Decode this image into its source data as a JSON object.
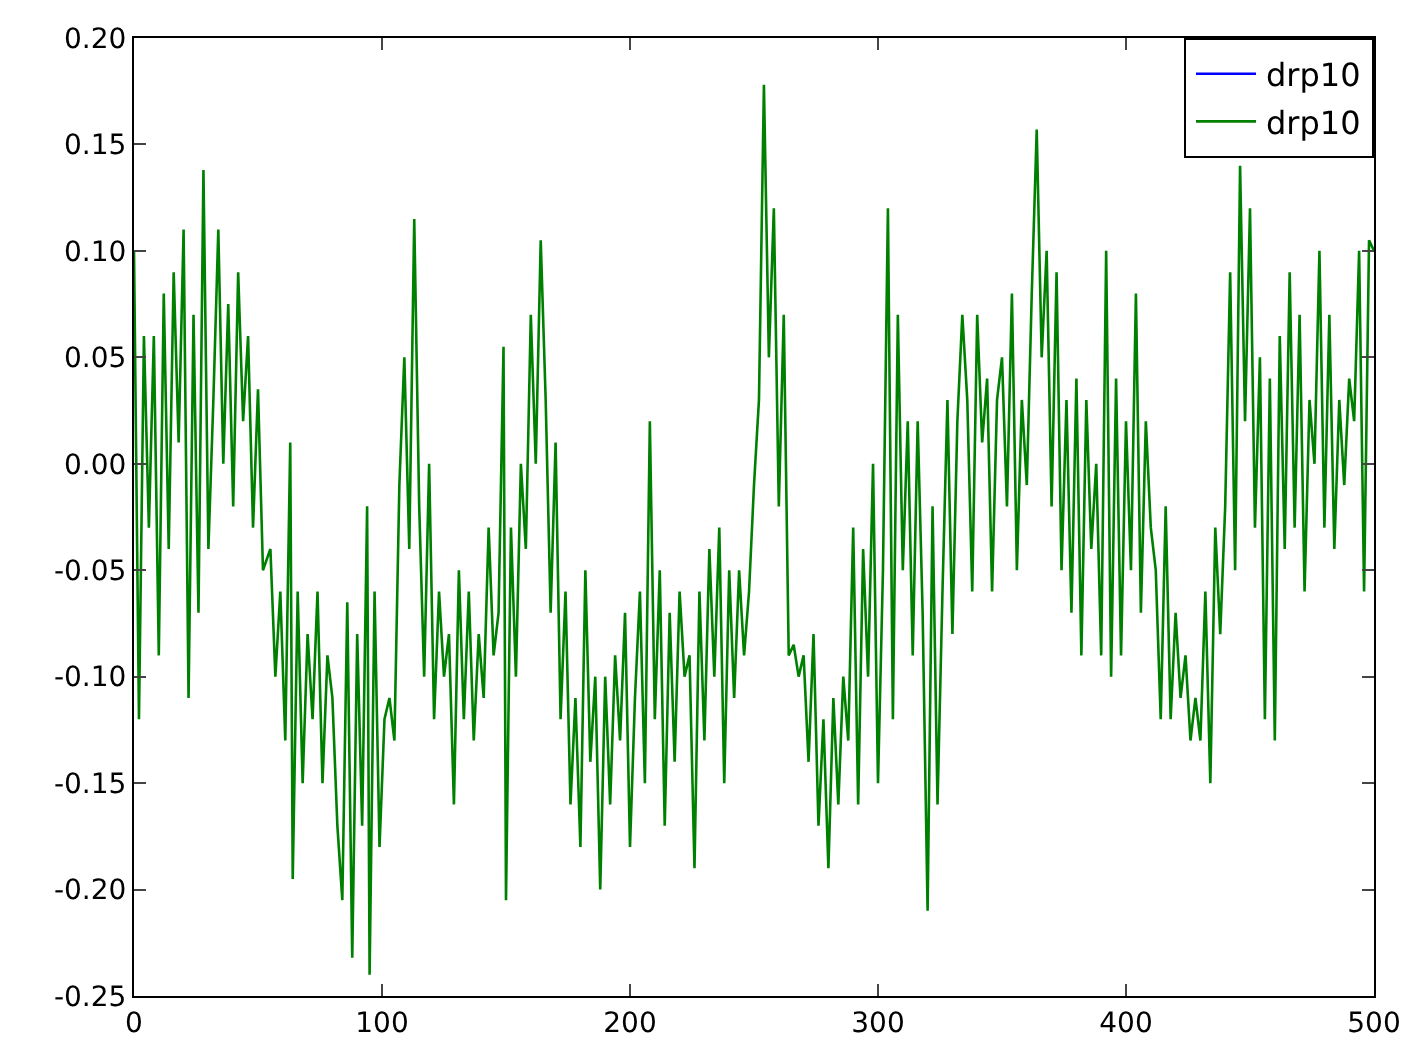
{
  "chart_data": {
    "type": "line",
    "xlim": [
      0,
      500
    ],
    "xticks": [
      0,
      100,
      200,
      300,
      400,
      500
    ],
    "ylim": [
      -0.25,
      0.2
    ],
    "yticks": [
      {
        "value": -0.25,
        "label": "-0.25"
      },
      {
        "value": -0.2,
        "label": "-0.20"
      },
      {
        "value": -0.15,
        "label": "-0.15"
      },
      {
        "value": -0.1,
        "label": "-0.10"
      },
      {
        "value": -0.05,
        "label": "-0.05"
      },
      {
        "value": 0,
        "label": "0.00"
      },
      {
        "value": 0.05,
        "label": "0.05"
      },
      {
        "value": 0.1,
        "label": "0.10"
      },
      {
        "value": 0.15,
        "label": "0.15"
      },
      {
        "value": 0.2,
        "label": "0.20"
      }
    ],
    "grid": false,
    "legend": "top right",
    "marker": "none",
    "line_style": "solid",
    "x": [
      0,
      2,
      4,
      6,
      8,
      10,
      12,
      14,
      16,
      18,
      20,
      22,
      24,
      26,
      28,
      30,
      32,
      34,
      36,
      38,
      40,
      42,
      44,
      46,
      48,
      50,
      52,
      55,
      57,
      59,
      61,
      63,
      64,
      66,
      68,
      70,
      72,
      74,
      76,
      78,
      80,
      82,
      84,
      86,
      88,
      90,
      92,
      94,
      95,
      97,
      99,
      101,
      103,
      105,
      107,
      109,
      111,
      113,
      115,
      117,
      119,
      121,
      123,
      125,
      127,
      129,
      131,
      133,
      135,
      137,
      139,
      141,
      143,
      145,
      147,
      149,
      150,
      152,
      154,
      156,
      158,
      160,
      162,
      164,
      166,
      168,
      170,
      172,
      174,
      176,
      178,
      180,
      182,
      184,
      186,
      188,
      190,
      192,
      194,
      196,
      198,
      200,
      202,
      204,
      206,
      208,
      210,
      212,
      214,
      216,
      218,
      220,
      222,
      224,
      226,
      228,
      230,
      232,
      234,
      236,
      238,
      240,
      242,
      244,
      246,
      248,
      250,
      252,
      254,
      256,
      258,
      260,
      262,
      264,
      266,
      268,
      270,
      272,
      274,
      276,
      278,
      280,
      282,
      284,
      286,
      288,
      290,
      292,
      294,
      296,
      298,
      300,
      302,
      304,
      306,
      308,
      310,
      312,
      314,
      316,
      318,
      320,
      322,
      324,
      326,
      328,
      330,
      332,
      334,
      336,
      338,
      340,
      342,
      344,
      346,
      348,
      350,
      352,
      354,
      356,
      358,
      360,
      362,
      364,
      366,
      368,
      370,
      372,
      374,
      376,
      378,
      380,
      382,
      384,
      386,
      388,
      390,
      392,
      394,
      396,
      398,
      400,
      402,
      404,
      406,
      408,
      410,
      412,
      414,
      416,
      418,
      420,
      422,
      424,
      426,
      428,
      430,
      432,
      434,
      436,
      438,
      440,
      442,
      444,
      446,
      448,
      450,
      452,
      454,
      456,
      458,
      460,
      462,
      464,
      466,
      468,
      470,
      472,
      474,
      476,
      478,
      480,
      482,
      484,
      486,
      488,
      490,
      492,
      494,
      496,
      498,
      500
    ],
    "series": [
      {
        "name": "drp10",
        "color": "#0000ff",
        "values": [
          null,
          null,
          null,
          null,
          null,
          null,
          null,
          null,
          null,
          null,
          null,
          null,
          null,
          null,
          null,
          null,
          null,
          null,
          null,
          null,
          null,
          null,
          null,
          null,
          null,
          null,
          null,
          null,
          null,
          null,
          null,
          null,
          null,
          null,
          null,
          null,
          null,
          null,
          null,
          null,
          null,
          null,
          null,
          null,
          null,
          null,
          null,
          null,
          null,
          null,
          null,
          null,
          null,
          null,
          null,
          null,
          null,
          null,
          null,
          null,
          null,
          null,
          null,
          null,
          null,
          null,
          null,
          null,
          null,
          null,
          null,
          null,
          null,
          null,
          null,
          null,
          null,
          null,
          null,
          null,
          null,
          null,
          null,
          null,
          null,
          null,
          null,
          null,
          null,
          null,
          null,
          null,
          null,
          null,
          null,
          null,
          null,
          null,
          null,
          null,
          null,
          null,
          null,
          null,
          null,
          null,
          null,
          null,
          null,
          null,
          null,
          null,
          null,
          null,
          null,
          null,
          null,
          null,
          null,
          null,
          null,
          null,
          null,
          null,
          null,
          null,
          null,
          null,
          null,
          null,
          null,
          null,
          null,
          null,
          null,
          null,
          null,
          null,
          null,
          null,
          null,
          null,
          null,
          null,
          null,
          null,
          null,
          null,
          null,
          null,
          null,
          null,
          null,
          null,
          null,
          null,
          null,
          null,
          null,
          null,
          null,
          null,
          null,
          null,
          null,
          null,
          null,
          null,
          null,
          null,
          null,
          null,
          null,
          null,
          null,
          null,
          null,
          null,
          null,
          null,
          null,
          null,
          null,
          null,
          null,
          null,
          null,
          null,
          null,
          null,
          null,
          null,
          null,
          null,
          null,
          null,
          null,
          null,
          null,
          null,
          null,
          null,
          null,
          null,
          null,
          null,
          null,
          null,
          null,
          null,
          null,
          null,
          null,
          null,
          null,
          null,
          null,
          null,
          null,
          null,
          null,
          null,
          null,
          null,
          null,
          null,
          null,
          null,
          null,
          null,
          null,
          null,
          null,
          null,
          null,
          null,
          null,
          null,
          null,
          null,
          null,
          null,
          null,
          null,
          null,
          null,
          null,
          null,
          null,
          null,
          null,
          null
        ]
      },
      {
        "name": "drp10",
        "color": "#008000",
        "values": [
          0.1,
          -0.12,
          0.06,
          -0.03,
          0.06,
          -0.09,
          0.08,
          -0.04,
          0.09,
          0.01,
          0.11,
          -0.11,
          0.07,
          -0.07,
          0.138,
          -0.04,
          0.03,
          0.11,
          0.0,
          0.075,
          -0.02,
          0.09,
          0.02,
          0.06,
          -0.03,
          0.035,
          -0.05,
          -0.04,
          -0.1,
          -0.06,
          -0.13,
          0.01,
          -0.195,
          -0.06,
          -0.15,
          -0.08,
          -0.12,
          -0.06,
          -0.15,
          -0.09,
          -0.11,
          -0.17,
          -0.205,
          -0.065,
          -0.232,
          -0.08,
          -0.17,
          -0.02,
          -0.24,
          -0.06,
          -0.18,
          -0.12,
          -0.11,
          -0.13,
          -0.01,
          0.05,
          -0.04,
          0.115,
          -0.02,
          -0.1,
          0.0,
          -0.12,
          -0.06,
          -0.1,
          -0.08,
          -0.16,
          -0.05,
          -0.12,
          -0.06,
          -0.13,
          -0.08,
          -0.11,
          -0.03,
          -0.09,
          -0.07,
          0.055,
          -0.205,
          -0.03,
          -0.1,
          0.0,
          -0.04,
          0.07,
          0.0,
          0.105,
          0.03,
          -0.07,
          0.01,
          -0.12,
          -0.06,
          -0.16,
          -0.11,
          -0.18,
          -0.05,
          -0.14,
          -0.1,
          -0.2,
          -0.1,
          -0.16,
          -0.09,
          -0.13,
          -0.07,
          -0.18,
          -0.11,
          -0.06,
          -0.15,
          0.02,
          -0.12,
          -0.05,
          -0.17,
          -0.07,
          -0.14,
          -0.06,
          -0.1,
          -0.09,
          -0.19,
          -0.06,
          -0.13,
          -0.04,
          -0.1,
          -0.03,
          -0.15,
          -0.05,
          -0.11,
          -0.05,
          -0.09,
          -0.06,
          -0.01,
          0.03,
          0.178,
          0.05,
          0.12,
          -0.02,
          0.07,
          -0.09,
          -0.085,
          -0.1,
          -0.09,
          -0.14,
          -0.08,
          -0.17,
          -0.12,
          -0.19,
          -0.11,
          -0.16,
          -0.1,
          -0.13,
          -0.03,
          -0.16,
          -0.04,
          -0.1,
          0.0,
          -0.15,
          -0.05,
          0.12,
          -0.12,
          0.07,
          -0.05,
          0.02,
          -0.09,
          0.02,
          -0.07,
          -0.21,
          -0.02,
          -0.16,
          -0.06,
          0.03,
          -0.08,
          0.02,
          0.07,
          0.03,
          -0.06,
          0.07,
          0.01,
          0.04,
          -0.06,
          0.03,
          0.05,
          -0.02,
          0.08,
          -0.05,
          0.03,
          -0.01,
          0.08,
          0.157,
          0.05,
          0.1,
          -0.02,
          0.09,
          -0.05,
          0.03,
          -0.07,
          0.04,
          -0.09,
          0.03,
          -0.04,
          0.0,
          -0.09,
          0.1,
          -0.1,
          0.04,
          -0.09,
          0.02,
          -0.05,
          0.08,
          -0.07,
          0.02,
          -0.03,
          -0.05,
          -0.12,
          -0.02,
          -0.12,
          -0.07,
          -0.11,
          -0.09,
          -0.13,
          -0.11,
          -0.13,
          -0.06,
          -0.15,
          -0.03,
          -0.08,
          -0.02,
          0.09,
          -0.05,
          0.14,
          0.02,
          0.12,
          -0.03,
          0.05,
          -0.12,
          0.04,
          -0.13,
          0.06,
          -0.04,
          0.09,
          -0.03,
          0.07,
          -0.06,
          0.03,
          0.0,
          0.1,
          -0.03,
          0.07,
          -0.04,
          0.03,
          -0.01,
          0.04,
          0.02,
          0.1,
          -0.06,
          0.105,
          0.1
        ]
      }
    ]
  }
}
